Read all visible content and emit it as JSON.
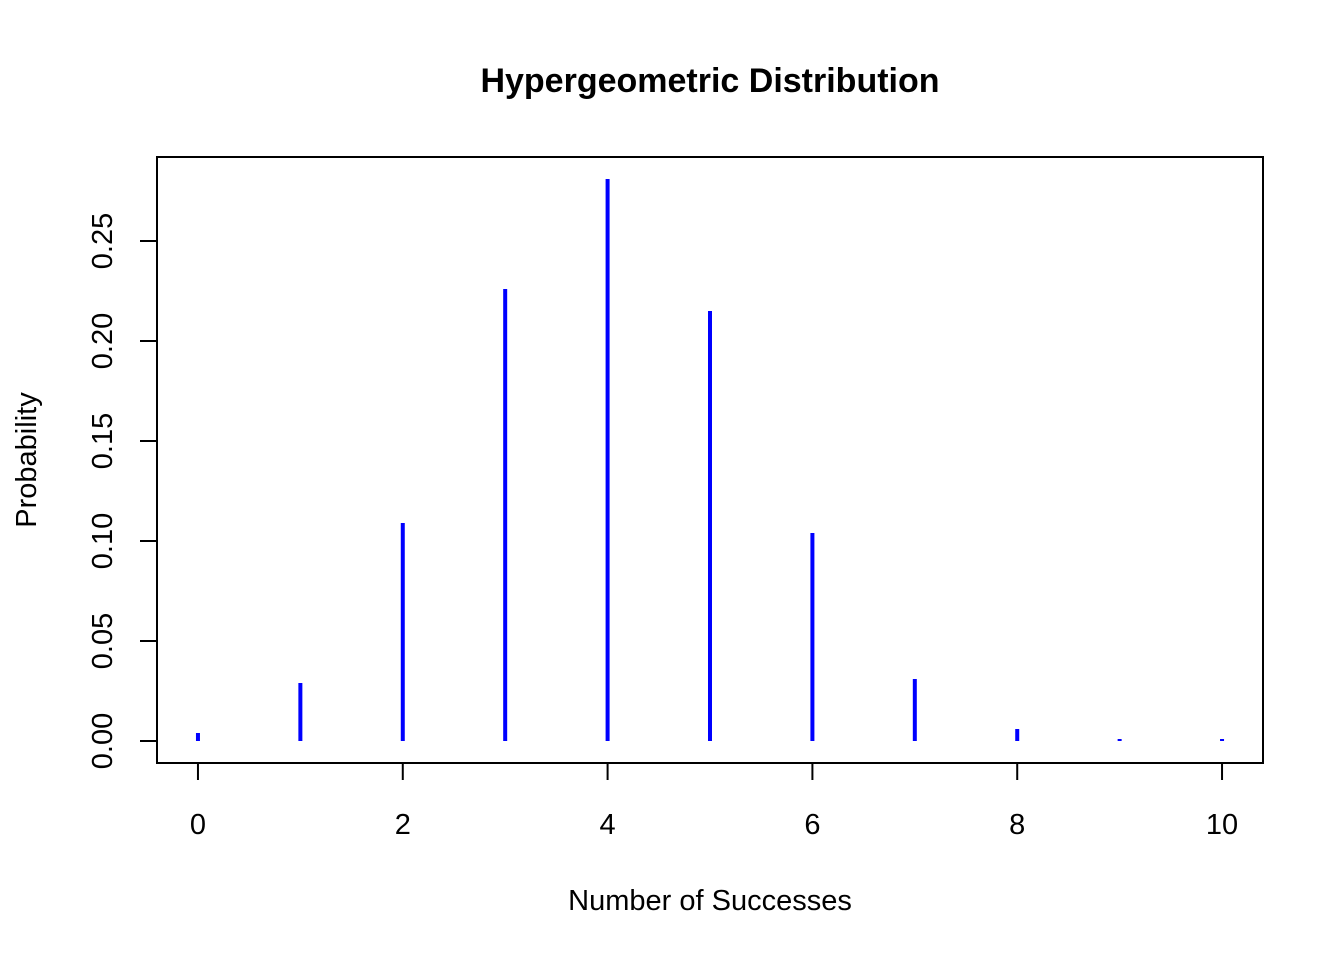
{
  "chart_data": {
    "type": "bar",
    "title": "Hypergeometric Distribution",
    "xlabel": "Number of Successes",
    "ylabel": "Probability",
    "x": [
      0,
      1,
      2,
      3,
      4,
      5,
      6,
      7,
      8,
      9,
      10
    ],
    "values": [
      0.004,
      0.029,
      0.109,
      0.226,
      0.281,
      0.215,
      0.104,
      0.031,
      0.006,
      0.001,
      0.0005
    ],
    "xlim": [
      -0.4,
      10.4
    ],
    "ylim": [
      -0.011,
      0.292
    ],
    "x_ticks": [
      "0",
      "2",
      "4",
      "6",
      "8",
      "10"
    ],
    "x_tick_values": [
      0,
      2,
      4,
      6,
      8,
      10
    ],
    "y_ticks": [
      "0.00",
      "0.05",
      "0.10",
      "0.15",
      "0.20",
      "0.25"
    ],
    "y_tick_values": [
      0,
      0.05,
      0.1,
      0.15,
      0.2,
      0.25
    ],
    "color": "#0000ff",
    "grid": false,
    "legend": "none"
  }
}
